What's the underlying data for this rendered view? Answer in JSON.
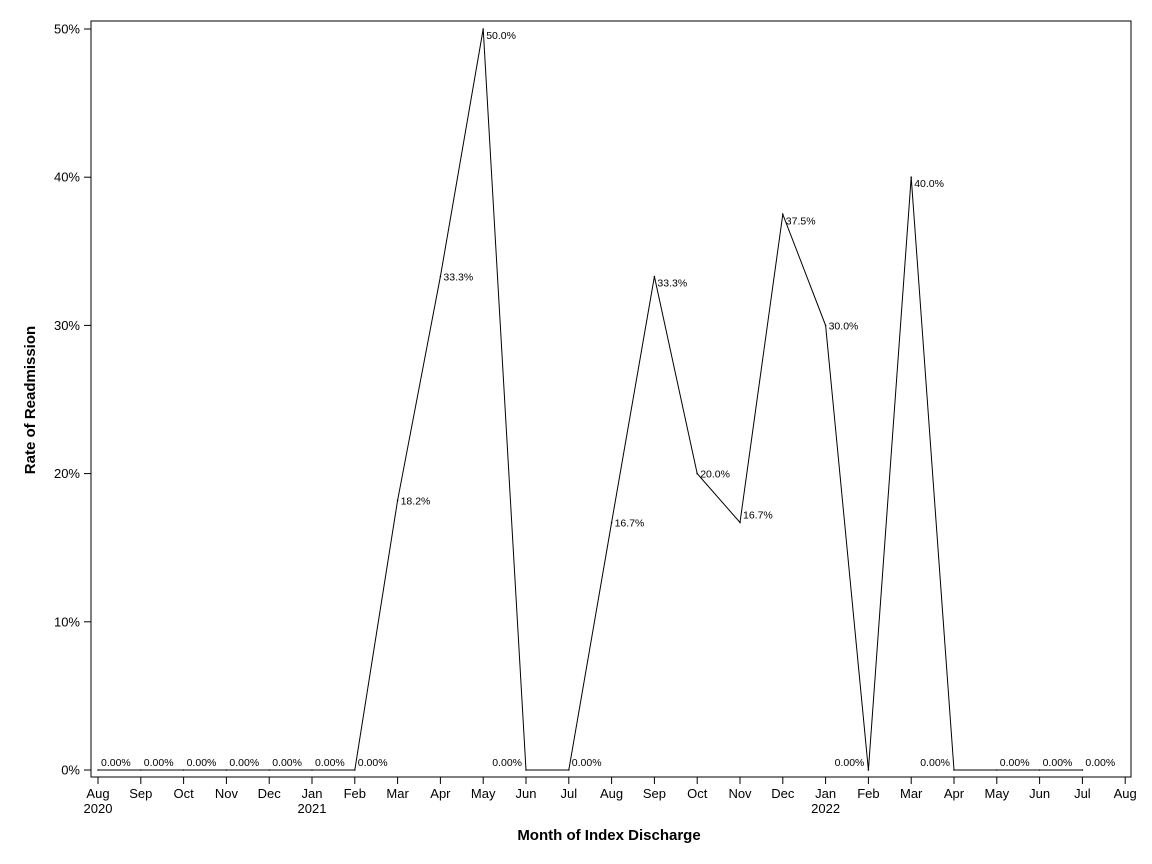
{
  "chart_data": {
    "type": "line",
    "title": "",
    "xlabel": "Month of Index Discharge",
    "ylabel": "Rate of Readmission",
    "ylim": [
      0,
      50
    ],
    "grid": false,
    "legend": "none",
    "line_color": "#000000",
    "x_ticks": [
      {
        "month": "Aug",
        "year": "2020"
      },
      {
        "month": "Sep",
        "year": ""
      },
      {
        "month": "Oct",
        "year": ""
      },
      {
        "month": "Nov",
        "year": ""
      },
      {
        "month": "Dec",
        "year": ""
      },
      {
        "month": "Jan",
        "year": "2021"
      },
      {
        "month": "Feb",
        "year": ""
      },
      {
        "month": "Mar",
        "year": ""
      },
      {
        "month": "Apr",
        "year": ""
      },
      {
        "month": "May",
        "year": ""
      },
      {
        "month": "Jun",
        "year": ""
      },
      {
        "month": "Jul",
        "year": ""
      },
      {
        "month": "Aug",
        "year": ""
      },
      {
        "month": "Sep",
        "year": ""
      },
      {
        "month": "Oct",
        "year": ""
      },
      {
        "month": "Nov",
        "year": ""
      },
      {
        "month": "Dec",
        "year": ""
      },
      {
        "month": "Jan",
        "year": "2022"
      },
      {
        "month": "Feb",
        "year": ""
      },
      {
        "month": "Mar",
        "year": ""
      },
      {
        "month": "Apr",
        "year": ""
      },
      {
        "month": "May",
        "year": ""
      },
      {
        "month": "Jun",
        "year": ""
      },
      {
        "month": "Jul",
        "year": ""
      },
      {
        "month": "Aug",
        "year": ""
      }
    ],
    "y_ticks": [
      {
        "value": 0,
        "label": "0%"
      },
      {
        "value": 10,
        "label": "10%"
      },
      {
        "value": 20,
        "label": "20%"
      },
      {
        "value": 30,
        "label": "30%"
      },
      {
        "value": 40,
        "label": "40%"
      },
      {
        "value": 50,
        "label": "50%"
      }
    ],
    "points": [
      {
        "x": "2020-08",
        "y": 0,
        "label": "0.00%"
      },
      {
        "x": "2020-09",
        "y": 0,
        "label": "0.00%"
      },
      {
        "x": "2020-10",
        "y": 0,
        "label": "0.00%"
      },
      {
        "x": "2020-11",
        "y": 0,
        "label": "0.00%"
      },
      {
        "x": "2020-12",
        "y": 0,
        "label": "0.00%"
      },
      {
        "x": "2021-01",
        "y": 0,
        "label": "0.00%"
      },
      {
        "x": "2021-02",
        "y": 0,
        "label": "0.00%"
      },
      {
        "x": "2021-03",
        "y": 18.2,
        "label": "18.2%"
      },
      {
        "x": "2021-04",
        "y": 33.3,
        "label": "33.3%"
      },
      {
        "x": "2021-05",
        "y": 50.0,
        "label": "50.0%"
      },
      {
        "x": "2021-06",
        "y": 0,
        "label": "0.00%"
      },
      {
        "x": "2021-07",
        "y": 0,
        "label": "0.00%"
      },
      {
        "x": "2021-08",
        "y": 16.7,
        "label": "16.7%"
      },
      {
        "x": "2021-09",
        "y": 33.3,
        "label": "33.3%"
      },
      {
        "x": "2021-10",
        "y": 20.0,
        "label": "20.0%"
      },
      {
        "x": "2021-11",
        "y": 16.7,
        "label": "16.7%"
      },
      {
        "x": "2021-12",
        "y": 37.5,
        "label": "37.5%"
      },
      {
        "x": "2022-01",
        "y": 30.0,
        "label": "30.0%"
      },
      {
        "x": "2022-02",
        "y": 0,
        "label": "0.00%"
      },
      {
        "x": "2022-03",
        "y": 40.0,
        "label": "40.0%"
      },
      {
        "x": "2022-04",
        "y": 0,
        "label": "0.00%"
      },
      {
        "x": "2022-05",
        "y": 0,
        "label": "0.00%"
      },
      {
        "x": "2022-06",
        "y": 0,
        "label": "0.00%"
      },
      {
        "x": "2022-07",
        "y": 0,
        "label": "0.00%"
      }
    ]
  }
}
